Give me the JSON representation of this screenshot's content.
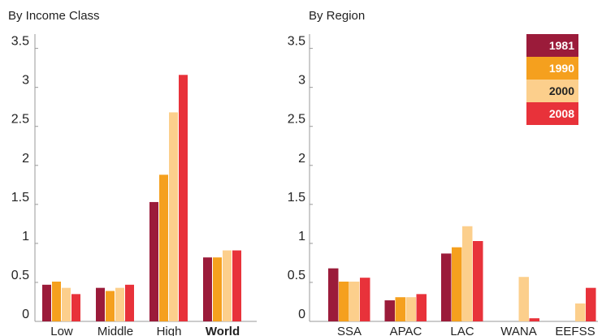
{
  "colors": {
    "1981": "#9b1b3a",
    "1990": "#f5a01e",
    "2000": "#fccf8c",
    "2008": "#e8323a",
    "axis": "#999999",
    "legend_text_light": "#ffffff",
    "legend_text_dark": "#222222"
  },
  "chart_data": [
    {
      "type": "bar",
      "title": "By Income Class",
      "xlabel": "",
      "ylabel": "",
      "ylim": [
        0,
        3.6
      ],
      "yticks": [
        "0",
        "0.5",
        "1",
        "1.5",
        "2",
        "2.5",
        "3",
        "3.5"
      ],
      "categories": [
        "Low",
        "Middle",
        "High",
        "World"
      ],
      "bold_categories": [
        "World"
      ],
      "series": [
        {
          "name": "1981",
          "values": [
            0.47,
            0.43,
            1.53,
            0.82
          ]
        },
        {
          "name": "1990",
          "values": [
            0.51,
            0.39,
            1.88,
            0.82
          ]
        },
        {
          "name": "2000",
          "values": [
            0.43,
            0.43,
            2.68,
            0.91
          ]
        },
        {
          "name": "2008",
          "values": [
            0.35,
            0.47,
            3.16,
            0.91
          ]
        }
      ],
      "grid": false
    },
    {
      "type": "bar",
      "title": "By Region",
      "xlabel": "",
      "ylabel": "",
      "ylim": [
        0,
        3.6
      ],
      "yticks": [
        "0",
        "0.5",
        "1",
        "1.5",
        "2",
        "2.5",
        "3",
        "3.5"
      ],
      "categories": [
        "SSA",
        "APAC",
        "LAC",
        "WANA",
        "EEFSS"
      ],
      "bold_categories": [],
      "series": [
        {
          "name": "1981",
          "values": [
            0.68,
            0.27,
            0.87,
            null,
            null
          ]
        },
        {
          "name": "1990",
          "values": [
            0.51,
            0.31,
            0.95,
            null,
            null
          ]
        },
        {
          "name": "2000",
          "values": [
            0.51,
            0.31,
            1.22,
            0.57,
            0.23
          ]
        },
        {
          "name": "2008",
          "values": [
            0.56,
            0.35,
            1.03,
            0.04,
            0.43
          ]
        }
      ],
      "legend": {
        "position": "top-right",
        "entries": [
          "1981",
          "1990",
          "2000",
          "2008"
        ]
      },
      "grid": false
    }
  ]
}
